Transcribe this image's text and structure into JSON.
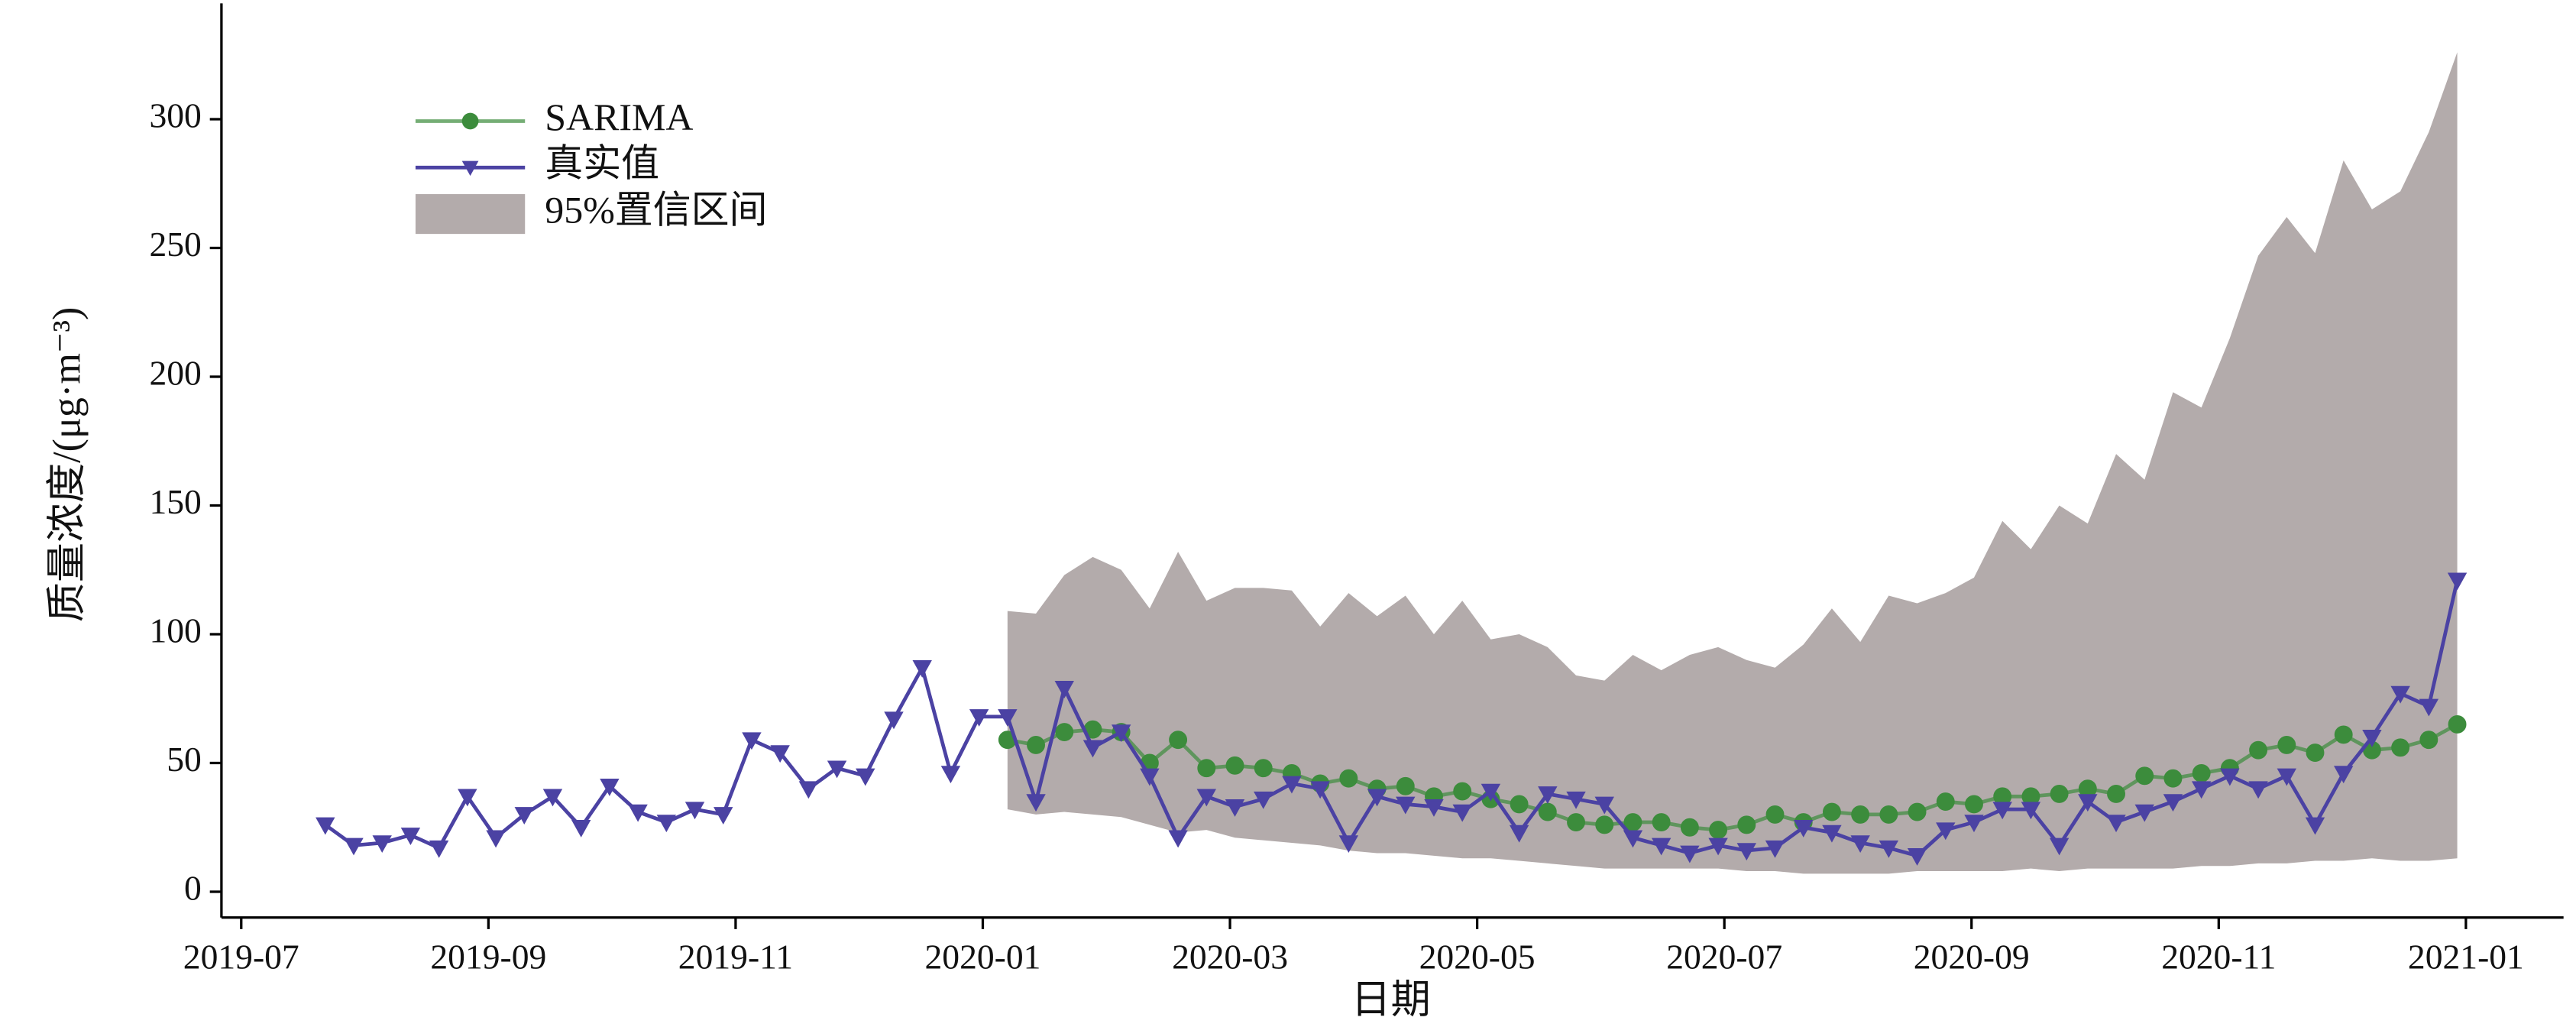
{
  "chart_data": {
    "type": "line",
    "xlabel": "日期",
    "ylabel": "质量浓度/(μg·m⁻³)",
    "x": [
      0.68,
      0.91,
      1.14,
      1.37,
      1.6,
      1.83,
      2.06,
      2.29,
      2.52,
      2.75,
      2.98,
      3.21,
      3.44,
      3.67,
      3.9,
      4.13,
      4.36,
      4.59,
      4.82,
      5.05,
      5.28,
      5.51,
      5.74,
      5.97,
      6.2,
      6.43,
      6.66,
      6.89,
      7.12,
      7.35,
      7.58,
      7.81,
      8.04,
      8.27,
      8.5,
      8.73,
      8.96,
      9.19,
      9.42,
      9.65,
      9.88,
      10.11,
      10.34,
      10.57,
      10.8,
      11.03,
      11.26,
      11.49,
      11.72,
      11.95,
      12.18,
      12.41,
      12.64,
      12.87,
      13.1,
      13.33,
      13.56,
      13.79,
      14.02,
      14.25,
      14.48,
      14.71,
      14.94,
      15.17,
      15.4,
      15.63,
      15.86,
      16.09,
      16.32,
      16.55,
      16.78,
      17.01,
      17.24,
      17.47,
      17.7,
      17.93
    ],
    "series": [
      {
        "name": "SARIMA",
        "color": "#3c8c3c",
        "marker": "circle",
        "values": [
          null,
          null,
          null,
          null,
          null,
          null,
          null,
          null,
          null,
          null,
          null,
          null,
          null,
          null,
          null,
          null,
          null,
          null,
          null,
          null,
          null,
          null,
          null,
          null,
          59,
          57,
          62,
          63,
          62,
          50,
          59,
          48,
          49,
          48,
          46,
          42,
          44,
          40,
          41,
          37,
          39,
          36,
          34,
          31,
          27,
          26,
          27,
          27,
          25,
          24,
          26,
          30,
          27,
          31,
          30,
          30,
          31,
          35,
          34,
          37,
          37,
          38,
          40,
          38,
          45,
          44,
          46,
          48,
          55,
          57,
          54,
          61,
          55,
          56,
          59,
          65
        ]
      },
      {
        "name": "真实值",
        "color": "#4b42a3",
        "marker": "triangle-down",
        "values": [
          26,
          18,
          19,
          22,
          17,
          37,
          21,
          30,
          37,
          25,
          41,
          31,
          27,
          32,
          30,
          59,
          54,
          40,
          48,
          45,
          67,
          87,
          46,
          68,
          68,
          35,
          79,
          56,
          62,
          45,
          21,
          37,
          33,
          36,
          42,
          40,
          19,
          37,
          34,
          33,
          31,
          39,
          23,
          38,
          36,
          34,
          21,
          18,
          15,
          18,
          16,
          17,
          25,
          23,
          19,
          17,
          14,
          24,
          27,
          32,
          32,
          18,
          35,
          27,
          31,
          35,
          40,
          45,
          40,
          45,
          26,
          46,
          60,
          77,
          72,
          121
        ]
      }
    ],
    "band": {
      "name": "95%置信区间",
      "color": "#b3abab",
      "upper": [
        null,
        null,
        null,
        null,
        null,
        null,
        null,
        null,
        null,
        null,
        null,
        null,
        null,
        null,
        null,
        null,
        null,
        null,
        null,
        null,
        null,
        null,
        null,
        null,
        109,
        108,
        123,
        130,
        125,
        110,
        132,
        113,
        118,
        118,
        117,
        103,
        116,
        107,
        115,
        100,
        113,
        98,
        100,
        95,
        84,
        82,
        92,
        86,
        92,
        95,
        90,
        87,
        96,
        110,
        97,
        115,
        112,
        116,
        122,
        144,
        133,
        150,
        143,
        170,
        160,
        194,
        188,
        215,
        247,
        262,
        248,
        284,
        265,
        272,
        295,
        326
      ],
      "lower": [
        null,
        null,
        null,
        null,
        null,
        null,
        null,
        null,
        null,
        null,
        null,
        null,
        null,
        null,
        null,
        null,
        null,
        null,
        null,
        null,
        null,
        null,
        null,
        null,
        32,
        30,
        31,
        30,
        29,
        26,
        23,
        24,
        21,
        20,
        19,
        18,
        16,
        15,
        15,
        14,
        13,
        13,
        12,
        11,
        10,
        9,
        9,
        9,
        9,
        9,
        8,
        8,
        7,
        7,
        7,
        7,
        8,
        8,
        8,
        8,
        9,
        8,
        9,
        9,
        9,
        9,
        10,
        10,
        11,
        11,
        12,
        12,
        13,
        12,
        12,
        13
      ]
    },
    "xlim": [
      -0.16,
      18.79
    ],
    "xticks": [
      {
        "value": 0,
        "label": "2019-07"
      },
      {
        "value": 2,
        "label": "2019-09"
      },
      {
        "value": 4,
        "label": "2019-11"
      },
      {
        "value": 6,
        "label": "2020-01"
      },
      {
        "value": 8,
        "label": "2020-03"
      },
      {
        "value": 10,
        "label": "2020-05"
      },
      {
        "value": 12,
        "label": "2020-07"
      },
      {
        "value": 14,
        "label": "2020-09"
      },
      {
        "value": 16,
        "label": "2020-11"
      },
      {
        "value": 18,
        "label": "2021-01"
      }
    ],
    "ylim": [
      -10,
      345
    ],
    "yticks": [
      0,
      50,
      100,
      150,
      200,
      250,
      300
    ],
    "grid": false,
    "legend": "upper left"
  }
}
